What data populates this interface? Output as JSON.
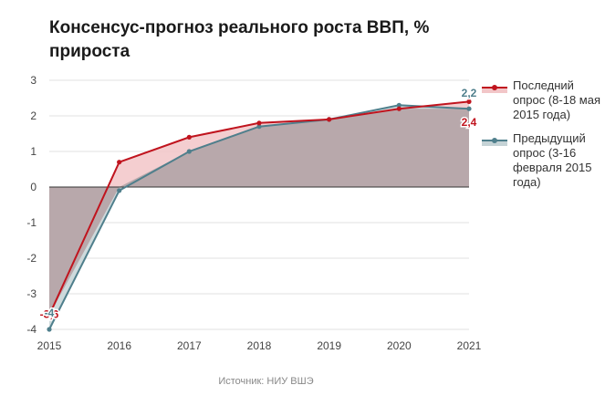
{
  "title": "Консенсус-прогноз реального роста ВВП, % прироста",
  "source": "Источник: НИУ ВШЭ",
  "chart_data": {
    "type": "area",
    "categories": [
      "2015",
      "2016",
      "2017",
      "2018",
      "2019",
      "2020",
      "2021"
    ],
    "ylim": [
      -4,
      3
    ],
    "yticks": [
      "3",
      "2",
      "1",
      "0",
      "-1",
      "-2",
      "-3",
      "-4"
    ],
    "grid": true,
    "legend_position": "right",
    "series": [
      {
        "name": "Последний опрос (8-18 мая 2015 года)",
        "values": [
          -3.6,
          0.7,
          1.4,
          1.8,
          1.9,
          2.2,
          2.4
        ],
        "color": "#c0141e",
        "fill": "#f2c6c8",
        "labels": {
          "first": "-3,6",
          "last": "2,4"
        }
      },
      {
        "name": "Предыдущий опрос (3-16 февраля 2015 года)",
        "values": [
          -4.0,
          -0.1,
          1.0,
          1.7,
          1.9,
          2.3,
          2.2
        ],
        "color": "#4f7f8c",
        "fill": "#c5d3d6",
        "labels": {
          "first": "-4",
          "last": "2,2"
        }
      }
    ],
    "overlap_fill": "#b8a8ab"
  }
}
